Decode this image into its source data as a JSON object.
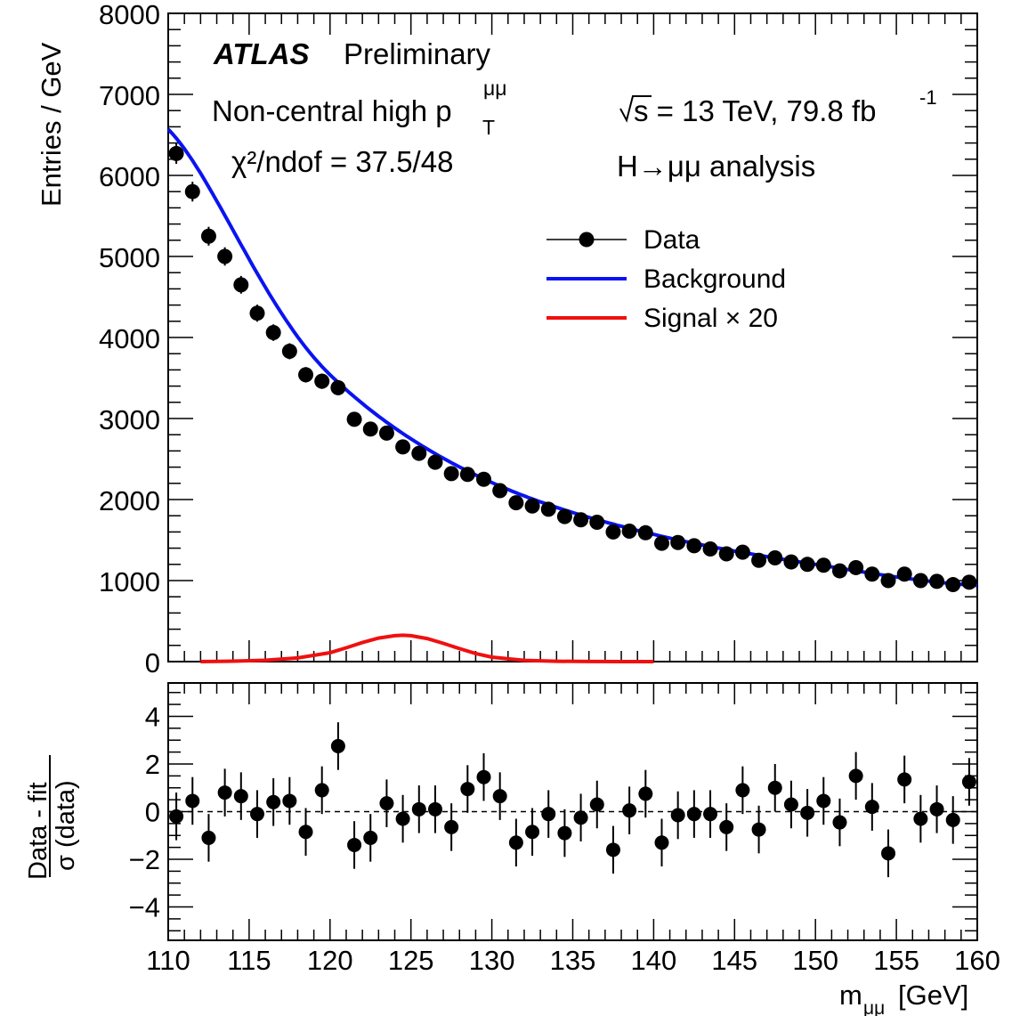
{
  "chart_data": [
    {
      "type": "scatter",
      "panel": "main",
      "experiment": "ATLAS",
      "experiment_tag": "Preliminary",
      "category_label": "Non-central high p",
      "category_sub": "T",
      "category_sup": "μμ",
      "chi2_label": "χ²/ndof = 37.5/48",
      "energy_label": "s = 13 TeV, 79.8 fb",
      "lumi_sup": "-1",
      "analysis_label": "H→μμ analysis",
      "ylabel": "Entries / GeV",
      "xlim": [
        110,
        160
      ],
      "ylim": [
        0,
        8000
      ],
      "yticks": [
        0,
        1000,
        2000,
        3000,
        4000,
        5000,
        6000,
        7000,
        8000
      ],
      "legend": {
        "position": "top-right",
        "items": [
          {
            "label": "Data",
            "style": "marker",
            "color": "#000000"
          },
          {
            "label": "Background",
            "style": "line",
            "color": "#0a14f0"
          },
          {
            "label": "Signal × 20",
            "style": "line",
            "color": "#ef1010"
          }
        ]
      },
      "series": [
        {
          "name": "Data",
          "x": [
            110.5,
            111.5,
            112.5,
            113.5,
            114.5,
            115.5,
            116.5,
            117.5,
            118.5,
            119.5,
            120.5,
            121.5,
            122.5,
            123.5,
            124.5,
            125.5,
            126.5,
            127.5,
            128.5,
            129.5,
            130.5,
            131.5,
            132.5,
            133.5,
            134.5,
            135.5,
            136.5,
            137.5,
            138.5,
            139.5,
            140.5,
            141.5,
            142.5,
            143.5,
            144.5,
            145.5,
            146.5,
            147.5,
            148.5,
            149.5,
            150.5,
            151.5,
            152.5,
            153.5,
            154.5,
            155.5,
            156.5,
            157.5,
            158.5,
            159.5
          ],
          "y": [
            6270,
            5800,
            5250,
            5000,
            4650,
            4300,
            4060,
            3830,
            3540,
            3460,
            3380,
            2990,
            2870,
            2820,
            2650,
            2570,
            2460,
            2320,
            2310,
            2250,
            2110,
            1960,
            1920,
            1880,
            1790,
            1750,
            1720,
            1600,
            1610,
            1590,
            1460,
            1470,
            1430,
            1390,
            1330,
            1350,
            1250,
            1280,
            1230,
            1200,
            1190,
            1120,
            1160,
            1080,
            1000,
            1080,
            1000,
            990,
            950,
            980
          ]
        },
        {
          "name": "Background",
          "model": "exp",
          "x": [
            110,
            120,
            130,
            140,
            150,
            160
          ],
          "y": [
            6570,
            3540,
            2210,
            1570,
            1200,
            940
          ]
        },
        {
          "name": "Signal × 20",
          "x": [
            112,
            114,
            116,
            118,
            120,
            121,
            122,
            123,
            124,
            124.5,
            125,
            126,
            127,
            128,
            129,
            130,
            132,
            134,
            136,
            138,
            140
          ],
          "y": [
            0,
            6,
            16,
            45,
            110,
            170,
            235,
            290,
            320,
            325,
            320,
            285,
            225,
            160,
            100,
            55,
            15,
            4,
            1,
            0,
            0
          ]
        }
      ]
    },
    {
      "type": "scatter",
      "panel": "ratio",
      "ylabel_num": "Data - fit",
      "ylabel_den": "σ (data)",
      "xlabel": "m",
      "xlabel_sub": "μμ",
      "xlabel_unit": "[GeV]",
      "xlim": [
        110,
        160
      ],
      "ylim": [
        -5.4,
        5.4
      ],
      "yticks": [
        -4,
        -2,
        0,
        2,
        4
      ],
      "xticks": [
        110,
        115,
        120,
        125,
        130,
        135,
        140,
        145,
        150,
        155,
        160
      ],
      "reference_line": 0,
      "series": [
        {
          "name": "Data",
          "x": [
            110.5,
            111.5,
            112.5,
            113.5,
            114.5,
            115.5,
            116.5,
            117.5,
            118.5,
            119.5,
            120.5,
            121.5,
            122.5,
            123.5,
            124.5,
            125.5,
            126.5,
            127.5,
            128.5,
            129.5,
            130.5,
            131.5,
            132.5,
            133.5,
            134.5,
            135.5,
            136.5,
            137.5,
            138.5,
            139.5,
            140.5,
            141.5,
            142.5,
            143.5,
            144.5,
            145.5,
            146.5,
            147.5,
            148.5,
            149.5,
            150.5,
            151.5,
            152.5,
            153.5,
            154.5,
            155.5,
            156.5,
            157.5,
            158.5,
            159.5
          ],
          "y": [
            -0.2,
            0.45,
            -1.1,
            0.8,
            0.65,
            -0.1,
            0.4,
            0.45,
            -0.85,
            0.9,
            2.75,
            -1.4,
            -1.1,
            0.35,
            -0.3,
            0.1,
            0.1,
            -0.65,
            0.95,
            1.45,
            0.65,
            -1.3,
            -0.85,
            -0.1,
            -0.9,
            -0.25,
            0.3,
            -1.6,
            0.05,
            0.75,
            -1.3,
            -0.15,
            -0.1,
            -0.1,
            -0.65,
            0.9,
            -0.75,
            1.0,
            0.3,
            -0.05,
            0.45,
            -0.45,
            1.5,
            0.2,
            -1.75,
            1.35,
            -0.3,
            0.1,
            -0.35,
            1.25
          ],
          "err": 1
        }
      ]
    }
  ]
}
